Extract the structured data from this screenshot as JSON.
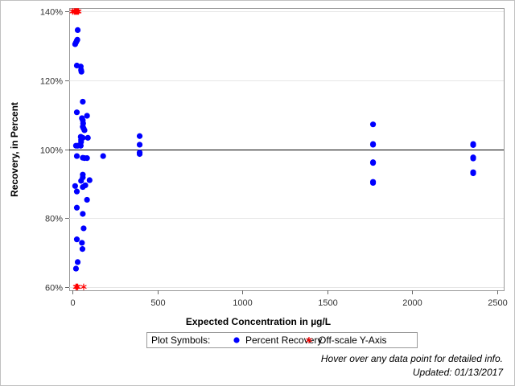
{
  "chart_data": {
    "type": "scatter",
    "xlabel": "Expected Concentration in µg/L",
    "ylabel": "Recovery, in Percent",
    "xlim": [
      -20,
      2540
    ],
    "ylim": [
      59,
      141
    ],
    "x_ticks": [
      0,
      500,
      1000,
      1500,
      2000,
      2500
    ],
    "y_ticks": [
      60,
      80,
      100,
      120,
      140
    ],
    "y_tick_labels": [
      "60%",
      "80%",
      "100%",
      "120%",
      "140%"
    ],
    "reference_line_y": 100,
    "grid": "horizontal",
    "colors": {
      "recovery": "#0000ff",
      "offscale": "#ff0000",
      "reference": "#000000",
      "grid": "#e6e6e6"
    },
    "series": [
      {
        "name": "Percent Recovery",
        "marker": "filled-circle",
        "points": [
          [
            15,
            130.5
          ],
          [
            20,
            131
          ],
          [
            25,
            131.5
          ],
          [
            28,
            131.8
          ],
          [
            30,
            134.6
          ],
          [
            25,
            124.3
          ],
          [
            48,
            124
          ],
          [
            50,
            123
          ],
          [
            52,
            122.5
          ],
          [
            60,
            113.8
          ],
          [
            25,
            110.7
          ],
          [
            55,
            109
          ],
          [
            60,
            108.4
          ],
          [
            62,
            107.5
          ],
          [
            85,
            109.7
          ],
          [
            60,
            106.5
          ],
          [
            65,
            106
          ],
          [
            70,
            105.5
          ],
          [
            48,
            103.6
          ],
          [
            60,
            103.3
          ],
          [
            90,
            103.3
          ],
          [
            50,
            102.7
          ],
          [
            50,
            102.1
          ],
          [
            20,
            101
          ],
          [
            30,
            101
          ],
          [
            48,
            101
          ],
          [
            25,
            98
          ],
          [
            60,
            97.5
          ],
          [
            70,
            97.4
          ],
          [
            85,
            97.4
          ],
          [
            180,
            98
          ],
          [
            60,
            92.6
          ],
          [
            60,
            91.8
          ],
          [
            50,
            90.8
          ],
          [
            100,
            91
          ],
          [
            60,
            89
          ],
          [
            75,
            89.5
          ],
          [
            15,
            89.3
          ],
          [
            25,
            87.7
          ],
          [
            85,
            85.3
          ],
          [
            25,
            83
          ],
          [
            60,
            81.2
          ],
          [
            65,
            77
          ],
          [
            25,
            73.8
          ],
          [
            55,
            72.8
          ],
          [
            58,
            71
          ],
          [
            30,
            67.2
          ],
          [
            20,
            65.3
          ],
          [
            395,
            103.8
          ],
          [
            395,
            101.3
          ],
          [
            395,
            99
          ],
          [
            395,
            98.6
          ],
          [
            1770,
            107.2
          ],
          [
            1770,
            101.5
          ],
          [
            1770,
            101.3
          ],
          [
            1770,
            96.2
          ],
          [
            1770,
            96
          ],
          [
            1770,
            90.5
          ],
          [
            1770,
            90.2
          ],
          [
            2360,
            101.5
          ],
          [
            2360,
            101.2
          ],
          [
            2360,
            97.6
          ],
          [
            2360,
            97.3
          ],
          [
            2360,
            93.3
          ],
          [
            2360,
            93
          ]
        ]
      },
      {
        "name": "Off-scale Y-Axis",
        "marker": "asterisk",
        "points": [
          [
            0,
            140
          ],
          [
            10,
            140
          ],
          [
            15,
            140
          ],
          [
            20,
            140
          ],
          [
            25,
            140
          ],
          [
            30,
            140
          ],
          [
            35,
            140
          ],
          [
            20,
            60
          ],
          [
            25,
            60
          ],
          [
            30,
            60
          ],
          [
            65,
            60
          ]
        ]
      }
    ]
  },
  "legend": {
    "title": "Plot Symbols:",
    "items": [
      "Percent Recovery",
      "Off-scale Y-Axis"
    ]
  },
  "footnote": {
    "hover": "Hover over any data point for detailed info.",
    "updated": "Updated: 01/13/2017"
  }
}
